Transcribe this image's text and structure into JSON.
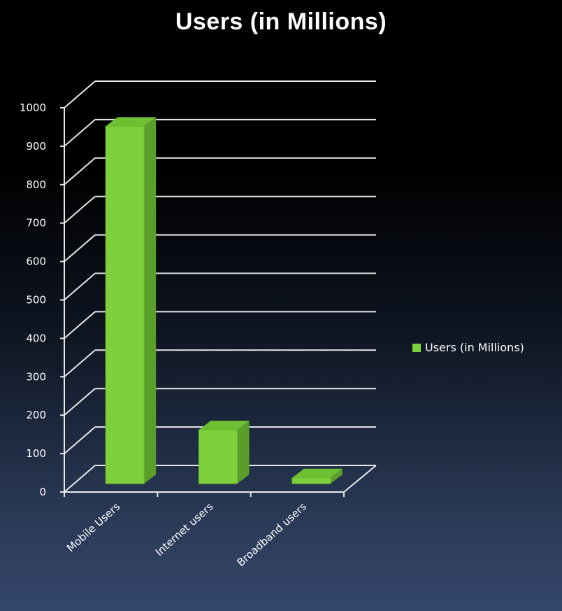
{
  "chart_data": {
    "type": "bar",
    "title": "Users (in Millions)",
    "categories": [
      "Mobile Users",
      "Internet users",
      "Broadband users"
    ],
    "series": [
      {
        "name": "Users (in Millions)",
        "values": [
          930,
          140,
          15
        ],
        "color": "#7fd13b"
      }
    ],
    "ylim": [
      0,
      1000
    ],
    "yticks": [
      "0",
      "100",
      "200",
      "300",
      "400",
      "500",
      "600",
      "700",
      "800",
      "900",
      "1000"
    ],
    "grid": true,
    "legend_position": "right",
    "style": "3d-bar"
  }
}
